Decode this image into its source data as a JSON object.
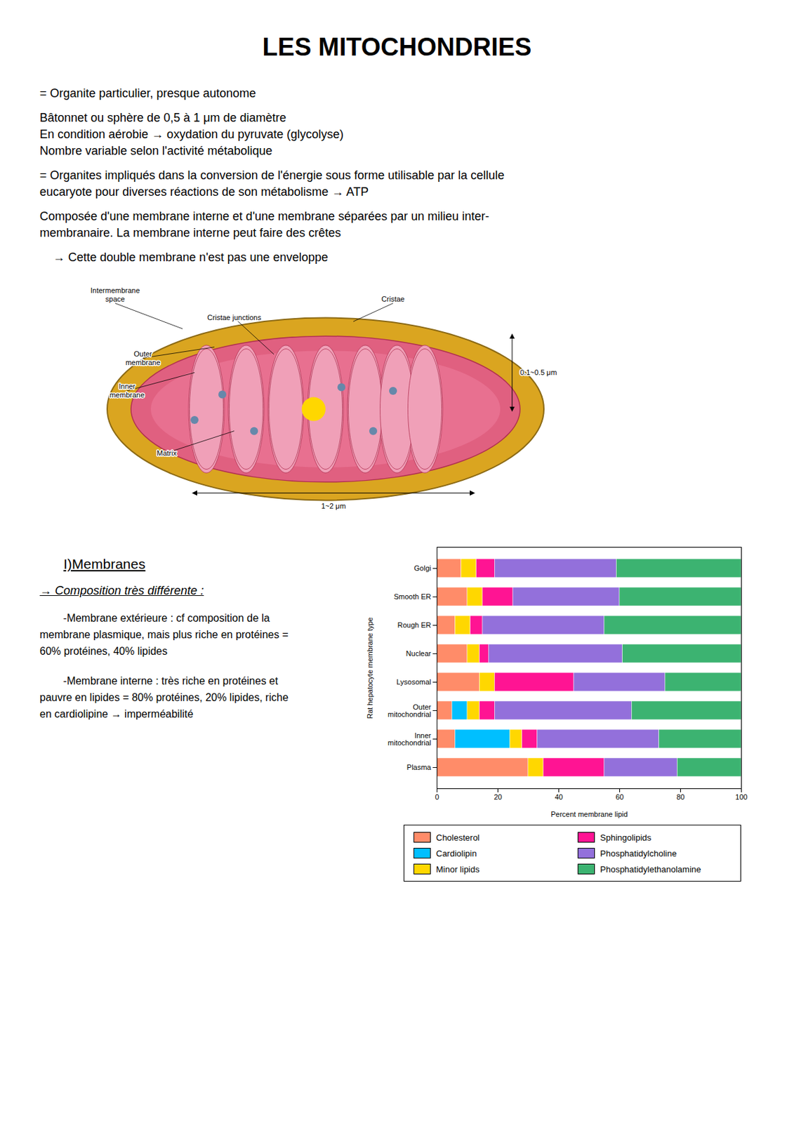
{
  "chart_data": {
    "type": "bar",
    "title": "LES MITOCHONDRIES",
    "annotations": [
      "= Organite particulier, presque autonome",
      "Bâtonnet ou sphère de 0,5 à 1 μm de diamètre",
      "En condition aérobie → oxydation du pyruvate (glycolyse)",
      "Nombre variable selon l'activité métabolique",
      "= Organites impliqués dans la conversion de l'énergie sous forme utilisable par la cellule",
      "eucaryote pour diverses réactions de son métabolisme → ATP",
      "Composée d'une membrane interne et d'une membrane séparées par un milieu inter-",
      "membranaire. La membrane interne peut faire des crêtes",
      "    → Cette double membrane n'est pas une enveloppe",
      "I)Membranes",
      "→ Composition très différente :",
      "        -Membrane extérieure : cf composition de la",
      "membrane plasmique, mais plus riche en protéines =",
      "60% protéines, 40% lipides",
      "        -Membrane interne : très riche en protéines et",
      "pauvre en lipides = 80% protéines, 20% lipides, riche",
      "en cardiolipine → imperméabilité",
      "Intermembrane\nspace",
      "Cristae",
      "Outer\nmembrane",
      "Cristae junctions",
      "Inner\nmembrane",
      "Matrix",
      "0.1~0.5 μm",
      "1~2 μm"
    ],
    "orientation": "horizontal",
    "stacked": true,
    "grid": false,
    "legend": "bottom",
    "xlabel": "Percent membrane lipid",
    "ylabel": "Rat hepatocyte membrane type",
    "categories": [
      "Plasma",
      "Inner\nmitochondrial",
      "Outer\nmitochondrial",
      "Lysosomal",
      "Nuclear",
      "Rough ER",
      "Smooth ER",
      "Golgi"
    ],
    "series": [
      {
        "name": "Cholesterol",
        "color": "#FF8C69",
        "values": [
          30,
          6,
          5,
          14,
          10,
          6,
          10,
          8
        ]
      },
      {
        "name": "Cardiolipin",
        "color": "#00BFFF",
        "values": [
          0,
          18,
          5,
          0,
          0,
          0,
          0,
          0
        ]
      },
      {
        "name": "Minor lipids",
        "color": "#FFD700",
        "values": [
          5,
          4,
          4,
          5,
          4,
          5,
          5,
          5
        ]
      },
      {
        "name": "Sphingolipids",
        "color": "#FF1493",
        "values": [
          20,
          5,
          5,
          26,
          3,
          4,
          10,
          6
        ]
      },
      {
        "name": "Phosphatidylcholine",
        "color": "#9370DB",
        "values": [
          24,
          40,
          45,
          30,
          44,
          40,
          35,
          40
        ]
      },
      {
        "name": "Phosphatidylethanolamine",
        "color": "#3CB371",
        "values": [
          21,
          27,
          36,
          25,
          39,
          45,
          40,
          41
        ]
      }
    ],
    "xlim": [
      0,
      100
    ],
    "xticks": [
      0,
      20,
      40,
      60,
      80,
      100
    ]
  }
}
